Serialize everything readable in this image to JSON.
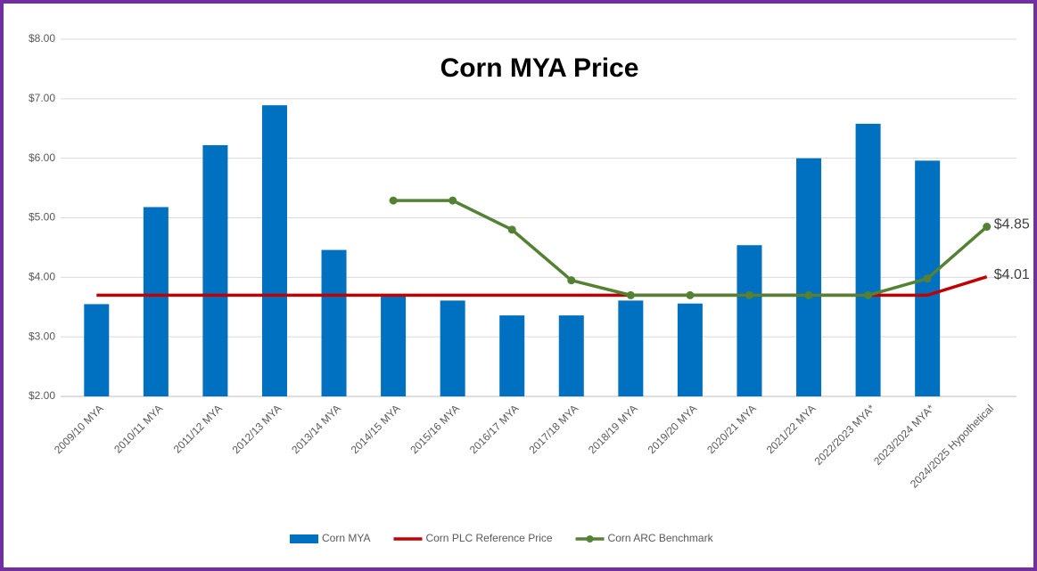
{
  "chart_data": {
    "type": "bar_line",
    "title": "Corn MYA Price",
    "categories": [
      "2009/10 MYA",
      "2010/11 MYA",
      "2011/12 MYA",
      "2012/13 MYA",
      "2013/14 MYA",
      "2014/15 MYA",
      "2015/16 MYA",
      "2016/17 MYA",
      "2017/18 MYA",
      "2018/19 MYA",
      "2019/20 MYA",
      "2020/21 MYA",
      "2021/22 MYA",
      "2022/2023 MYA*",
      "2023/2024 MYA*",
      "2024/2025 Hypothetical"
    ],
    "series": [
      {
        "name": "Corn MYA",
        "type": "bar",
        "color": "#0070c0",
        "values": [
          3.55,
          5.18,
          6.22,
          6.89,
          4.46,
          3.7,
          3.61,
          3.36,
          3.36,
          3.61,
          3.56,
          4.54,
          6.0,
          6.58,
          5.96,
          null
        ]
      },
      {
        "name": "Corn PLC Reference Price",
        "type": "line",
        "color": "#c00000",
        "values": [
          3.7,
          3.7,
          3.7,
          3.7,
          3.7,
          3.7,
          3.7,
          3.7,
          3.7,
          3.7,
          3.7,
          3.7,
          3.7,
          3.7,
          3.7,
          4.01
        ],
        "value_labels": [
          null,
          null,
          null,
          null,
          null,
          null,
          null,
          null,
          null,
          null,
          null,
          null,
          null,
          null,
          null,
          "$4.01"
        ]
      },
      {
        "name": "Corn ARC Benchmark",
        "type": "line",
        "color": "#548235",
        "markers": true,
        "values": [
          null,
          null,
          null,
          null,
          null,
          5.29,
          5.29,
          4.8,
          3.95,
          3.7,
          3.7,
          3.7,
          3.7,
          3.7,
          3.98,
          4.85
        ],
        "value_labels": [
          null,
          null,
          null,
          null,
          null,
          null,
          null,
          null,
          null,
          null,
          null,
          null,
          null,
          null,
          null,
          "$4.85"
        ]
      }
    ],
    "ylim": [
      2,
      8
    ],
    "yticks": [
      {
        "value": 2,
        "label": "$2.00"
      },
      {
        "value": 3,
        "label": "$3.00"
      },
      {
        "value": 4,
        "label": "$4.00"
      },
      {
        "value": 5,
        "label": "$5.00"
      },
      {
        "value": 6,
        "label": "$6.00"
      },
      {
        "value": 7,
        "label": "$7.00"
      },
      {
        "value": 8,
        "label": "$8.00"
      }
    ],
    "grid": true,
    "legend": "bottom"
  }
}
